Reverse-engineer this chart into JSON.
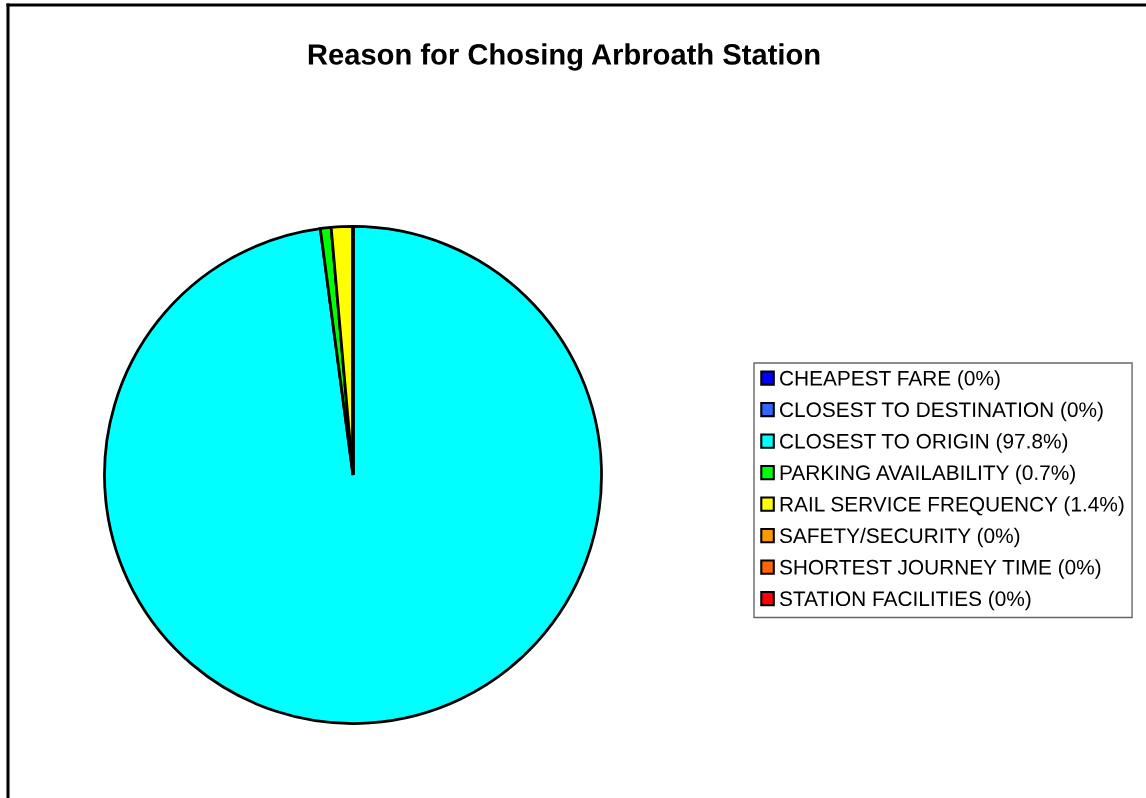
{
  "chart_data": {
    "type": "pie",
    "title": "Reason for Chosing Arbroath Station",
    "categories": [
      "CHEAPEST FARE (0%)",
      "CLOSEST TO DESTINATION (0%)",
      "CLOSEST TO ORIGIN (97.8%)",
      "PARKING AVAILABILITY (0.7%)",
      "RAIL SERVICE FREQUENCY (1.4%)",
      "SAFETY/SECURITY (0%)",
      "SHORTEST JOURNEY TIME (0%)",
      "STATION FACILITIES (0%)"
    ],
    "values": [
      0,
      0,
      97.8,
      0.7,
      1.4,
      0,
      0,
      0
    ],
    "colors": [
      "#0000ff",
      "#3366ff",
      "#00ffff",
      "#00ff00",
      "#ffff00",
      "#ff9900",
      "#ff6600",
      "#ff0000"
    ],
    "legend": "right"
  }
}
